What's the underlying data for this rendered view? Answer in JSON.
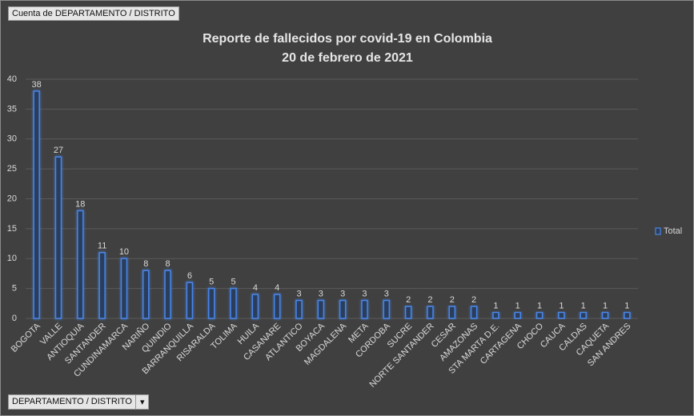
{
  "chart_data": {
    "type": "bar",
    "title": "Reporte de fallecidos por covid-19 en Colombia",
    "subtitle": "20 de febrero de 2021",
    "categories": [
      "BOGOTA",
      "VALLE",
      "ANTIOQUIA",
      "SANTANDER",
      "CUNDINAMARCA",
      "NARIÑO",
      "QUINDIO",
      "BARRANQUILLA",
      "RISARALDA",
      "TOLIMA",
      "HUILA",
      "CASANARE",
      "ATLANTICO",
      "BOYACA",
      "MAGDALENA",
      "META",
      "CORDOBA",
      "SUCRE",
      "NORTE SANTANDER",
      "CESAR",
      "AMAZONAS",
      "STA MARTA D.E.",
      "CARTAGENA",
      "CHOCO",
      "CAUCA",
      "CALDAS",
      "CAQUETA",
      "SAN ANDRES"
    ],
    "series": [
      {
        "name": "Total",
        "color": "#4a86e8",
        "values": [
          38,
          27,
          18,
          11,
          10,
          8,
          8,
          6,
          5,
          5,
          4,
          4,
          3,
          3,
          3,
          3,
          3,
          2,
          2,
          2,
          2,
          1,
          1,
          1,
          1,
          1,
          1,
          1
        ]
      }
    ],
    "ylim": [
      0,
      40
    ],
    "yticks": [
      0,
      5,
      10,
      15,
      20,
      25,
      30,
      35,
      40
    ],
    "grid": true,
    "legend": "right"
  },
  "filters": {
    "value_field": "Cuenta de DEPARTAMENTO / DISTRITO",
    "axis_field": "DEPARTAMENTO / DISTRITO"
  }
}
